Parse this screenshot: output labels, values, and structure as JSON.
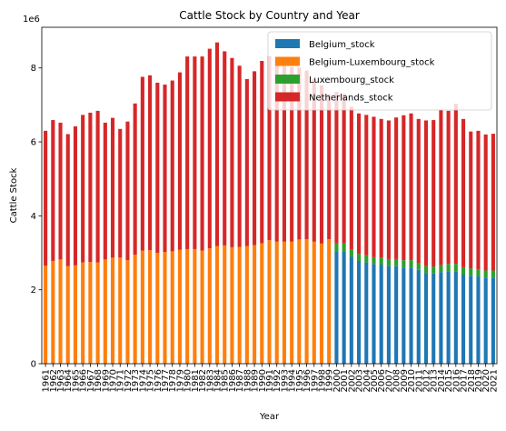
{
  "chart_data": {
    "type": "bar",
    "stacked": true,
    "title": "Cattle Stock by Country and Year",
    "xlabel": "Year",
    "ylabel": "Cattle Stock",
    "y_offset_label": "1e6",
    "ylim": [
      0,
      9.1
    ],
    "y_ticks": [
      0,
      2,
      4,
      6,
      8
    ],
    "grid": false,
    "legend_position": "top-right",
    "categories": [
      "1961",
      "1962",
      "1963",
      "1964",
      "1965",
      "1966",
      "1967",
      "1968",
      "1969",
      "1970",
      "1971",
      "1972",
      "1973",
      "1974",
      "1975",
      "1976",
      "1977",
      "1978",
      "1979",
      "1980",
      "1981",
      "1982",
      "1983",
      "1984",
      "1985",
      "1986",
      "1987",
      "1988",
      "1989",
      "1990",
      "1991",
      "1992",
      "1993",
      "1994",
      "1995",
      "1996",
      "1997",
      "1998",
      "1999",
      "2000",
      "2001",
      "2002",
      "2003",
      "2004",
      "2005",
      "2006",
      "2007",
      "2008",
      "2009",
      "2010",
      "2011",
      "2012",
      "2013",
      "2014",
      "2015",
      "2016",
      "2017",
      "2018",
      "2019",
      "2020",
      "2021"
    ],
    "series": [
      {
        "name": "Belgium_stock",
        "color": "#1f77b4",
        "values": [
          0,
          0,
          0,
          0,
          0,
          0,
          0,
          0,
          0,
          0,
          0,
          0,
          0,
          0,
          0,
          0,
          0,
          0,
          0,
          0,
          0,
          0,
          0,
          0,
          0,
          0,
          0,
          0,
          0,
          0,
          0,
          0,
          0,
          0,
          0,
          0,
          0,
          0,
          0,
          3.04,
          3.04,
          2.89,
          2.78,
          2.74,
          2.7,
          2.68,
          2.64,
          2.64,
          2.6,
          2.6,
          2.54,
          2.45,
          2.44,
          2.48,
          2.5,
          2.5,
          2.41,
          2.38,
          2.36,
          2.33,
          2.33
        ]
      },
      {
        "name": "Belgium-Luxembourg_stock",
        "color": "#ff7f0e",
        "values": [
          2.65,
          2.78,
          2.82,
          2.64,
          2.66,
          2.74,
          2.75,
          2.74,
          2.82,
          2.87,
          2.87,
          2.8,
          2.95,
          3.06,
          3.07,
          3.0,
          3.02,
          3.04,
          3.08,
          3.1,
          3.1,
          3.06,
          3.12,
          3.18,
          3.2,
          3.15,
          3.16,
          3.18,
          3.21,
          3.26,
          3.34,
          3.3,
          3.3,
          3.3,
          3.36,
          3.37,
          3.3,
          3.25,
          3.37,
          0,
          0,
          0,
          0,
          0,
          0,
          0,
          0,
          0,
          0,
          0,
          0,
          0,
          0,
          0,
          0,
          0,
          0,
          0,
          0,
          0,
          0
        ]
      },
      {
        "name": "Luxembourg_stock",
        "color": "#2ca02c",
        "values": [
          0,
          0,
          0,
          0,
          0,
          0,
          0,
          0,
          0,
          0,
          0,
          0,
          0,
          0,
          0,
          0,
          0,
          0,
          0,
          0,
          0,
          0,
          0,
          0,
          0,
          0,
          0,
          0,
          0,
          0,
          0,
          0,
          0,
          0,
          0,
          0,
          0,
          0,
          0,
          0.21,
          0.21,
          0.2,
          0.19,
          0.19,
          0.18,
          0.19,
          0.19,
          0.19,
          0.2,
          0.2,
          0.19,
          0.19,
          0.19,
          0.19,
          0.2,
          0.2,
          0.2,
          0.2,
          0.19,
          0.19,
          0.19
        ]
      },
      {
        "name": "Netherlands_stock",
        "color": "#d62728",
        "values": [
          3.65,
          3.81,
          3.7,
          3.57,
          3.76,
          3.99,
          4.04,
          4.1,
          3.7,
          3.78,
          3.48,
          3.75,
          4.09,
          4.7,
          4.73,
          4.6,
          4.53,
          4.62,
          4.8,
          5.21,
          5.21,
          5.25,
          5.4,
          5.51,
          5.25,
          5.12,
          4.9,
          4.52,
          4.7,
          4.93,
          4.98,
          4.96,
          4.8,
          4.72,
          4.65,
          4.56,
          4.4,
          4.28,
          3.92,
          4.1,
          4.05,
          3.86,
          3.8,
          3.8,
          3.8,
          3.75,
          3.75,
          3.83,
          3.92,
          3.97,
          3.89,
          3.94,
          3.96,
          4.2,
          4.14,
          4.33,
          4.01,
          3.7,
          3.75,
          3.68,
          3.7
        ]
      }
    ]
  }
}
